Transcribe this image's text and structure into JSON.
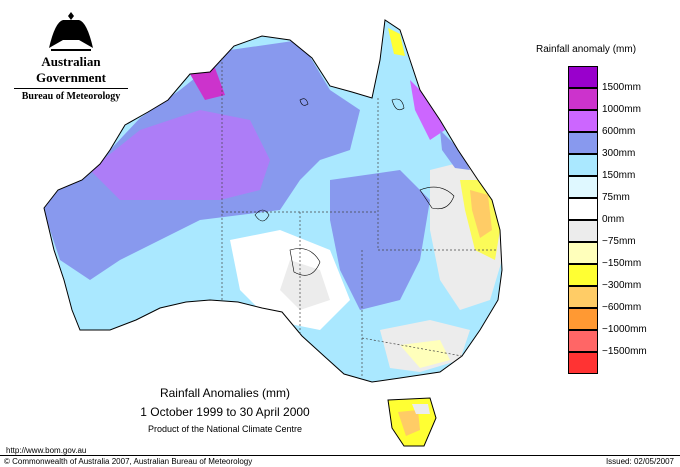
{
  "header": {
    "org_line1": "Australian Government",
    "org_line2": "Bureau of Meteorology",
    "crest_icon": "coat-of-arms-icon"
  },
  "legend": {
    "title": "Rainfall anomaly (mm)",
    "items": [
      {
        "label": "1500mm",
        "color": "#9900cc"
      },
      {
        "label": "1000mm",
        "color": "#cc33cc"
      },
      {
        "label": "600mm",
        "color": "#cc66ff"
      },
      {
        "label": "300mm",
        "color": "#8899ee"
      },
      {
        "label": "150mm",
        "color": "#aae8ff"
      },
      {
        "label": "75mm",
        "color": "#dff8ff"
      },
      {
        "label": "0mm",
        "color": "#ffffff"
      },
      {
        "label": "−75mm",
        "color": "#ececec"
      },
      {
        "label": "−150mm",
        "color": "#ffffbb"
      },
      {
        "label": "−300mm",
        "color": "#ffff33"
      },
      {
        "label": "−600mm",
        "color": "#ffcc66"
      },
      {
        "label": "−1000mm",
        "color": "#ff9933"
      },
      {
        "label": "−1500mm",
        "color": "#ff6666"
      },
      {
        "label": "",
        "color": "#ff3333"
      }
    ]
  },
  "caption": {
    "title": "Rainfall Anomalies (mm)",
    "period": "1 October 1999 to 30 April 2000",
    "product": "Product of the National Climate Centre"
  },
  "footer": {
    "url": "http://www.bom.gov.au",
    "copyright": "© Commonwealth of Australia 2007, Australian Bureau of Meteorology",
    "issued": "Issued: 02/05/2007"
  }
}
